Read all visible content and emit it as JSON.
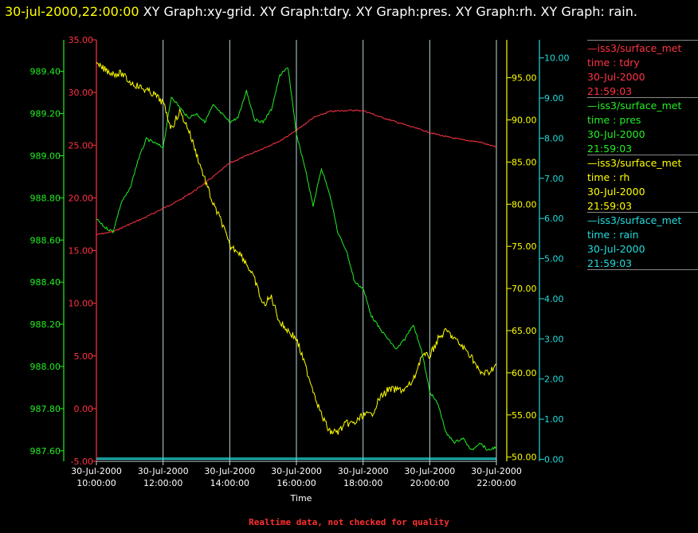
{
  "header": {
    "timestamp": "30-jul-2000,22:00:00",
    "graphs": "XY Graph:xy-grid.  XY Graph:tdry.  XY Graph:pres.  XY Graph:rh.  XY Graph: rain."
  },
  "footer": {
    "note": "Realtime data, not checked for quality"
  },
  "colors": {
    "tdry": "#ff3344",
    "pres": "#22ee22",
    "rh": "#ffff00",
    "rain": "#22dddd",
    "grid": "#bbd8d8",
    "background": "#000000"
  },
  "legend": [
    {
      "source": "iss3/surface_met",
      "field": "time : tdry",
      "date": "30-Jul-2000",
      "time": "21:59:03"
    },
    {
      "source": "iss3/surface_met",
      "field": "time : pres",
      "date": "30-Jul-2000",
      "time": "21:59:03"
    },
    {
      "source": "iss3/surface_met",
      "field": "time : rh",
      "date": "30-Jul-2000",
      "time": "21:59:03"
    },
    {
      "source": "iss3/surface_met",
      "field": "time : rain",
      "date": "30-Jul-2000",
      "time": "21:59:03"
    }
  ],
  "chart_data": {
    "type": "line",
    "title": "30-jul-2000,22:00:00  XY Graph:xy-grid.  XY Graph:tdry.  XY Graph:pres.  XY Graph:rh.  XY Graph: rain.",
    "xlabel": "Time",
    "xlim": [
      "2000-07-30 10:00:00",
      "2000-07-30 22:00:00"
    ],
    "x_ticks": [
      {
        "date": "30-Jul-2000",
        "time": "10:00:00"
      },
      {
        "date": "30-Jul-2000",
        "time": "12:00:00"
      },
      {
        "date": "30-Jul-2000",
        "time": "14:00:00"
      },
      {
        "date": "30-Jul-2000",
        "time": "16:00:00"
      },
      {
        "date": "30-Jul-2000",
        "time": "18:00:00"
      },
      {
        "date": "30-Jul-2000",
        "time": "20:00:00"
      },
      {
        "date": "30-Jul-2000",
        "time": "22:00:00"
      }
    ],
    "grid": "vertical lines at x ticks",
    "axes": [
      {
        "series": "tdry",
        "side": "left-inner",
        "ylim": [
          -5,
          35
        ],
        "ticks": [
          "35.00",
          "30.00",
          "25.00",
          "20.00",
          "15.00",
          "10.00",
          "5.00",
          "0.00",
          "-5.00"
        ]
      },
      {
        "series": "pres",
        "side": "left-outer",
        "ylim": [
          987.55,
          989.55
        ],
        "ticks": [
          "989.40",
          "989.20",
          "989.00",
          "988.80",
          "988.60",
          "988.40",
          "988.20",
          "988.00",
          "987.80",
          "987.60"
        ]
      },
      {
        "series": "rh",
        "side": "right-inner",
        "ylim": [
          49.5,
          99.5
        ],
        "ticks": [
          "95.00",
          "90.00",
          "85.00",
          "80.00",
          "75.00",
          "70.00",
          "65.00",
          "60.00",
          "55.00",
          "50.00"
        ]
      },
      {
        "series": "rain",
        "side": "right-outer",
        "ylim": [
          -0.05,
          10.45
        ],
        "ticks": [
          "10.00",
          "9.00",
          "8.00",
          "7.00",
          "6.00",
          "5.00",
          "4.00",
          "3.00",
          "2.00",
          "1.00",
          "0.00"
        ]
      }
    ],
    "series": [
      {
        "name": "iss3/surface_met time : tdry",
        "key": "tdry",
        "x": [
          "10:00",
          "10:30",
          "11:00",
          "11:30",
          "12:00",
          "12:30",
          "13:00",
          "13:30",
          "14:00",
          "14:30",
          "15:00",
          "15:30",
          "16:00",
          "16:30",
          "17:00",
          "17:30",
          "18:00",
          "18:30",
          "19:00",
          "19:30",
          "20:00",
          "20:30",
          "21:00",
          "21:30",
          "22:00"
        ],
        "values": [
          16.5,
          16.8,
          17.5,
          18.2,
          19.0,
          19.8,
          20.8,
          22.0,
          23.3,
          24.0,
          24.7,
          25.4,
          26.4,
          27.6,
          28.2,
          28.3,
          28.3,
          27.7,
          27.2,
          26.7,
          26.2,
          25.8,
          25.5,
          25.3,
          24.8
        ]
      },
      {
        "name": "iss3/surface_met time : pres",
        "key": "pres",
        "x": [
          "10:00",
          "10:15",
          "10:30",
          "10:45",
          "11:00",
          "11:15",
          "11:30",
          "11:45",
          "12:00",
          "12:15",
          "12:30",
          "12:45",
          "13:00",
          "13:15",
          "13:30",
          "13:45",
          "14:00",
          "14:15",
          "14:30",
          "14:45",
          "15:00",
          "15:15",
          "15:30",
          "15:45",
          "16:00",
          "16:15",
          "16:30",
          "16:45",
          "17:00",
          "17:15",
          "17:30",
          "17:45",
          "18:00",
          "18:15",
          "18:30",
          "18:45",
          "19:00",
          "19:15",
          "19:30",
          "19:45",
          "20:00",
          "20:15",
          "20:30",
          "20:45",
          "21:00",
          "21:15",
          "21:30",
          "21:45",
          "22:00"
        ],
        "values": [
          988.7,
          988.66,
          988.64,
          988.78,
          988.84,
          988.98,
          989.08,
          989.06,
          989.04,
          989.28,
          989.23,
          989.18,
          989.2,
          989.16,
          989.24,
          989.2,
          989.16,
          989.18,
          989.31,
          989.17,
          989.16,
          989.22,
          989.38,
          989.42,
          989.1,
          988.95,
          988.76,
          988.94,
          988.82,
          988.63,
          988.55,
          988.4,
          988.37,
          988.24,
          988.18,
          988.13,
          988.08,
          988.13,
          988.2,
          988.08,
          987.88,
          987.82,
          987.68,
          987.64,
          987.66,
          987.6,
          987.64,
          987.6,
          987.62
        ]
      },
      {
        "name": "iss3/surface_met time : rh",
        "key": "rh",
        "x": [
          "10:00",
          "10:15",
          "10:30",
          "10:45",
          "11:00",
          "11:15",
          "11:30",
          "11:45",
          "12:00",
          "12:15",
          "12:30",
          "12:45",
          "13:00",
          "13:15",
          "13:30",
          "13:45",
          "14:00",
          "14:15",
          "14:30",
          "14:45",
          "15:00",
          "15:15",
          "15:30",
          "15:45",
          "16:00",
          "16:15",
          "16:30",
          "16:45",
          "17:00",
          "17:15",
          "17:30",
          "17:45",
          "18:00",
          "18:15",
          "18:30",
          "18:45",
          "19:00",
          "19:15",
          "19:30",
          "19:45",
          "20:00",
          "20:15",
          "20:30",
          "20:45",
          "21:00",
          "21:15",
          "21:30",
          "21:45",
          "22:00"
        ],
        "values": [
          96.5,
          96,
          95.5,
          95.5,
          94.5,
          94,
          93.5,
          93,
          92,
          89,
          91,
          89,
          86,
          83,
          80,
          78,
          75,
          74.5,
          73,
          71,
          68,
          69,
          66,
          65,
          64,
          61,
          58,
          55,
          53,
          53,
          54,
          54,
          55,
          55,
          57,
          58,
          58,
          58,
          59,
          62,
          62,
          64,
          65,
          64,
          63,
          62,
          60,
          60,
          61
        ]
      },
      {
        "name": "iss3/surface_met time : rain",
        "key": "rain",
        "x": [
          "10:00",
          "22:00"
        ],
        "values": [
          0.0,
          0.0
        ]
      }
    ]
  }
}
